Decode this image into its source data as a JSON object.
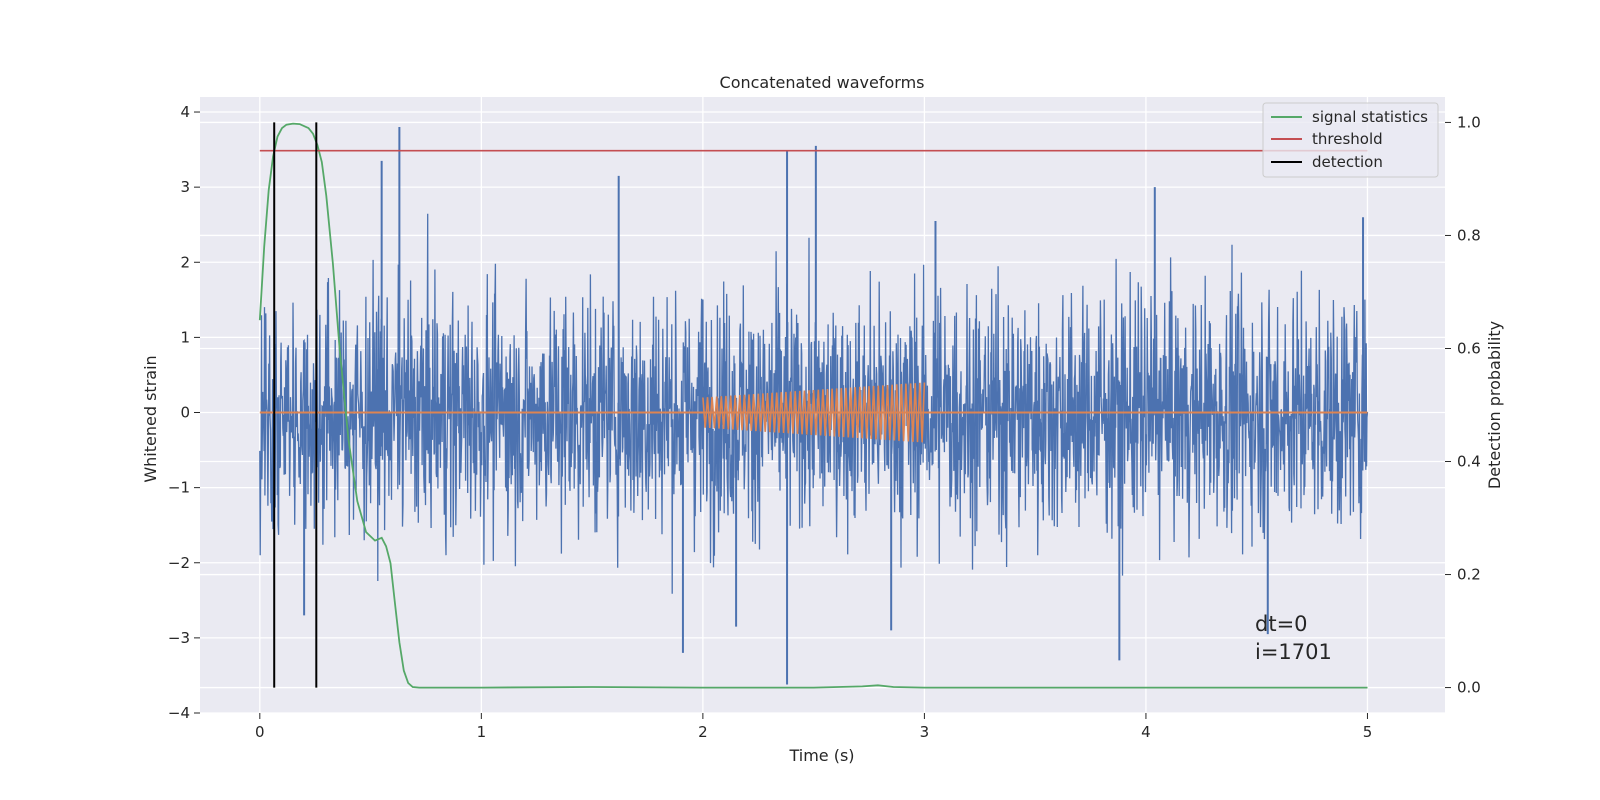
{
  "chart_data": {
    "type": "line",
    "title": "Concatenated waveforms",
    "xlabel": "Time (s)",
    "ylabel": "Whitened strain",
    "y2label": "Detection probability",
    "xlim": [
      -0.27,
      5.35
    ],
    "ylim": [
      -4.0,
      4.2
    ],
    "y2lim": [
      -0.045,
      1.045
    ],
    "x_ticks": [
      0,
      1,
      2,
      3,
      4,
      5
    ],
    "x_tick_labels": [
      "0",
      "1",
      "2",
      "3",
      "4",
      "5"
    ],
    "y_ticks": [
      -4,
      -3,
      -2,
      -1,
      0,
      1,
      2,
      3,
      4
    ],
    "y_tick_labels": [
      "−4",
      "−3",
      "−2",
      "−1",
      "0",
      "1",
      "2",
      "3",
      "4"
    ],
    "y2_ticks": [
      0.0,
      0.2,
      0.4,
      0.6,
      0.8,
      1.0
    ],
    "y2_tick_labels": [
      "0.0",
      "0.2",
      "0.4",
      "0.6",
      "0.8",
      "1.0"
    ],
    "grid": true,
    "legend_position": "top-right",
    "legend": [
      {
        "label": "signal statistics",
        "color": "#55a868"
      },
      {
        "label": "threshold",
        "color": "#c44e52"
      },
      {
        "label": "detection",
        "color": "#000000"
      }
    ],
    "strain_noise": {
      "color": "#4c72b0",
      "x_range": [
        0,
        5
      ],
      "typical_amplitude": 0.9,
      "spikes": [
        {
          "x": 0.63,
          "y": 3.8
        },
        {
          "x": 0.55,
          "y": 3.35
        },
        {
          "x": 2.38,
          "y": 3.48
        },
        {
          "x": 2.51,
          "y": 3.55
        },
        {
          "x": 1.62,
          "y": 3.15
        },
        {
          "x": 4.04,
          "y": 3.0
        },
        {
          "x": 2.38,
          "y": -3.62
        },
        {
          "x": 3.88,
          "y": -3.3
        },
        {
          "x": 1.91,
          "y": -3.2
        },
        {
          "x": 4.55,
          "y": -2.95
        },
        {
          "x": 2.15,
          "y": -2.85
        },
        {
          "x": 0.2,
          "y": -2.7
        },
        {
          "x": 4.98,
          "y": 2.6
        },
        {
          "x": 3.05,
          "y": 2.55
        },
        {
          "x": 2.85,
          "y": -2.9
        }
      ]
    },
    "injected_waveform": {
      "color": "#dd8452",
      "baseline_x": [
        0,
        5
      ],
      "chirp_start": 2.0,
      "chirp_end": 3.0,
      "amp_start": 0.2,
      "amp_end": 0.4,
      "cycles": 48
    },
    "signal_statistics": {
      "color": "#55a868",
      "x": [
        0,
        0.02,
        0.04,
        0.06,
        0.08,
        0.1,
        0.12,
        0.15,
        0.18,
        0.22,
        0.24,
        0.26,
        0.28,
        0.3,
        0.33,
        0.36,
        0.4,
        0.44,
        0.48,
        0.52,
        0.55,
        0.57,
        0.59,
        0.61,
        0.63,
        0.65,
        0.67,
        0.69,
        0.72,
        1.0,
        1.5,
        2.0,
        2.5,
        2.72,
        2.79,
        2.86,
        3.0,
        4.0,
        5.0
      ],
      "y": [
        0.65,
        0.78,
        0.88,
        0.94,
        0.975,
        0.99,
        0.996,
        0.998,
        0.997,
        0.99,
        0.98,
        0.96,
        0.93,
        0.87,
        0.75,
        0.6,
        0.44,
        0.33,
        0.275,
        0.26,
        0.265,
        0.25,
        0.22,
        0.15,
        0.08,
        0.03,
        0.008,
        0.001,
        0.0,
        0.0,
        0.001,
        0.0,
        0.0,
        0.002,
        0.004,
        0.001,
        0.0,
        0.0,
        0.0
      ]
    },
    "threshold": {
      "y": 0.95,
      "x": [
        0,
        5
      ]
    },
    "detections": [
      0.065,
      0.255
    ],
    "detection_y2_range": [
      0.0,
      1.0
    ],
    "annotation": [
      "dt=0",
      "i=1701"
    ],
    "annotation_x": 4.5,
    "annotation_y": -2.8
  }
}
